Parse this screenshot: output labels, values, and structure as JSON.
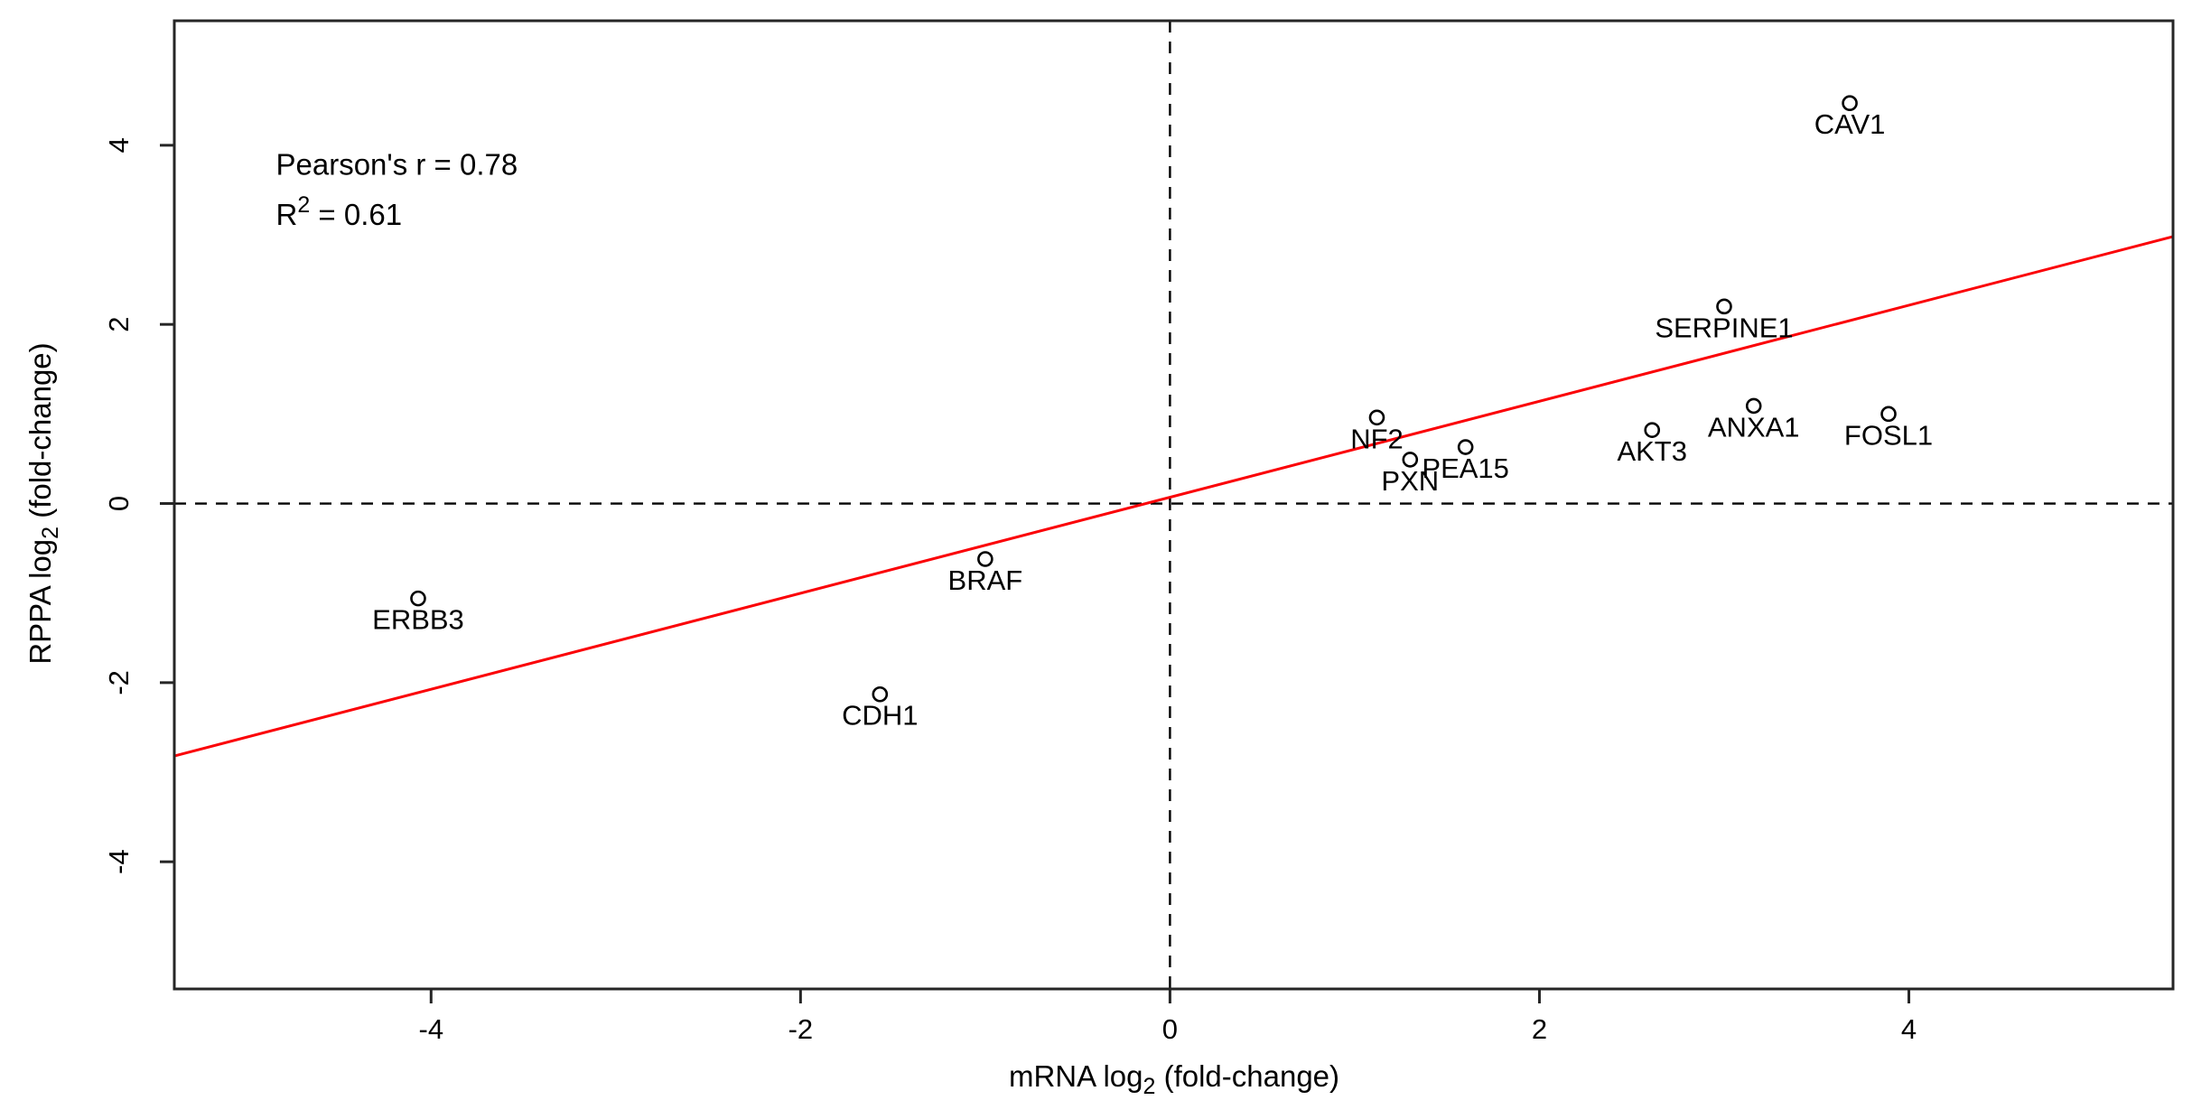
{
  "figure": {
    "description": "Scatter plot of mRNA vs RPPA log2 fold-change with gene labels, regression line and zero reference lines"
  },
  "chart_data": {
    "type": "scatter",
    "title": "",
    "xlabel": {
      "prefix": "mRNA log",
      "sub": "2",
      "suffix": " (fold-change)"
    },
    "ylabel": {
      "prefix": "RPPA log",
      "sub": "2",
      "suffix": " (fold-change)"
    },
    "xlim": [
      -5.39,
      5.43
    ],
    "ylim": [
      -5.42,
      5.39
    ],
    "x_ticks": [
      -4,
      -2,
      0,
      2,
      4
    ],
    "y_ticks": [
      -4,
      -2,
      0,
      2,
      4
    ],
    "grid": false,
    "marker": "open-circle",
    "points": [
      {
        "gene": "CAV1",
        "x": 3.68,
        "y": 4.47
      },
      {
        "gene": "SERPINE1",
        "x": 3.0,
        "y": 2.2
      },
      {
        "gene": "NF2",
        "x": 1.12,
        "y": 0.96
      },
      {
        "gene": "PXN",
        "x": 1.3,
        "y": 0.49
      },
      {
        "gene": "PEA15",
        "x": 1.6,
        "y": 0.63
      },
      {
        "gene": "AKT3",
        "x": 2.61,
        "y": 0.82
      },
      {
        "gene": "ANXA1",
        "x": 3.16,
        "y": 1.09
      },
      {
        "gene": "FOSL1",
        "x": 3.89,
        "y": 1.0
      },
      {
        "gene": "ERBB3",
        "x": -4.07,
        "y": -1.06
      },
      {
        "gene": "BRAF",
        "x": -1.0,
        "y": -0.62
      },
      {
        "gene": "CDH1",
        "x": -1.57,
        "y": -2.13
      }
    ],
    "regression_line": {
      "slope": 0.536,
      "intercept": 0.07
    },
    "reference_lines": {
      "horizontal_y": 0,
      "vertical_x": 0,
      "style": "dashed"
    },
    "annotation": {
      "line1": "Pearson's r = 0.78",
      "line2_prefix": "R",
      "line2_sup": "2",
      "line2_suffix": " = 0.61",
      "x": -4.84,
      "y_line1": 3.76,
      "y_line2": 3.2
    },
    "colors": {
      "points": "#000000",
      "labels": "#000000",
      "regression": "#fb0006",
      "reference": "#000000",
      "axis": "#262626",
      "background": "#ffffff"
    }
  }
}
